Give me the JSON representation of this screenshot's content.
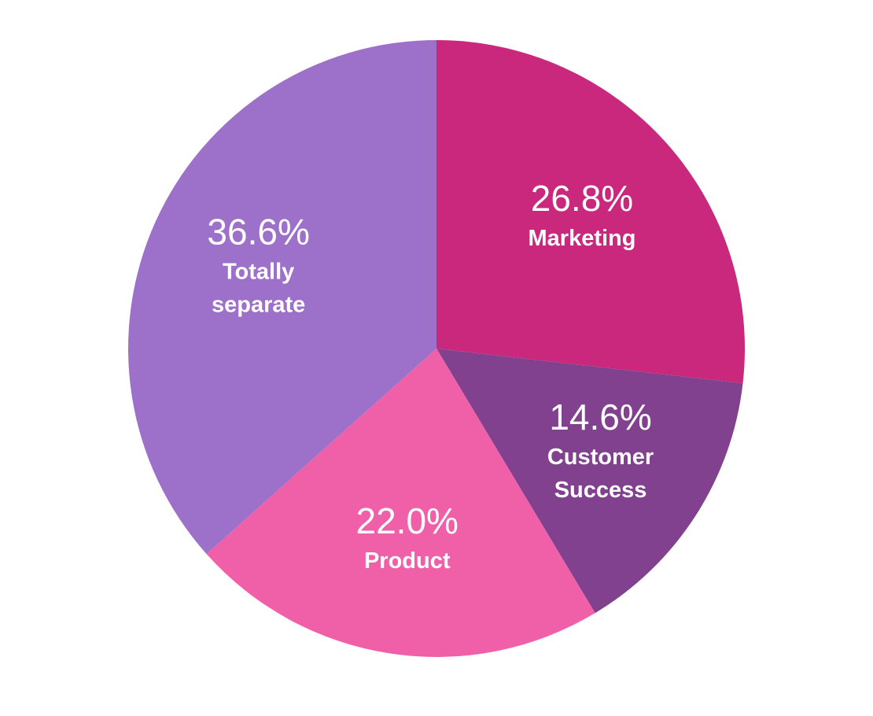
{
  "chart_data": {
    "type": "pie",
    "title": "",
    "slices": [
      {
        "label_lines": [
          "Marketing"
        ],
        "value": 26.8,
        "value_label": "26.8%",
        "color": "#C9287C"
      },
      {
        "label_lines": [
          "Customer",
          "Success"
        ],
        "value": 14.6,
        "value_label": "14.6%",
        "color": "#81418F"
      },
      {
        "label_lines": [
          "Product"
        ],
        "value": 22.0,
        "value_label": "22.0%",
        "color": "#F060A8"
      },
      {
        "label_lines": [
          "Totally",
          "separate"
        ],
        "value": 36.6,
        "value_label": "36.6%",
        "color": "#9D70C9"
      }
    ]
  }
}
